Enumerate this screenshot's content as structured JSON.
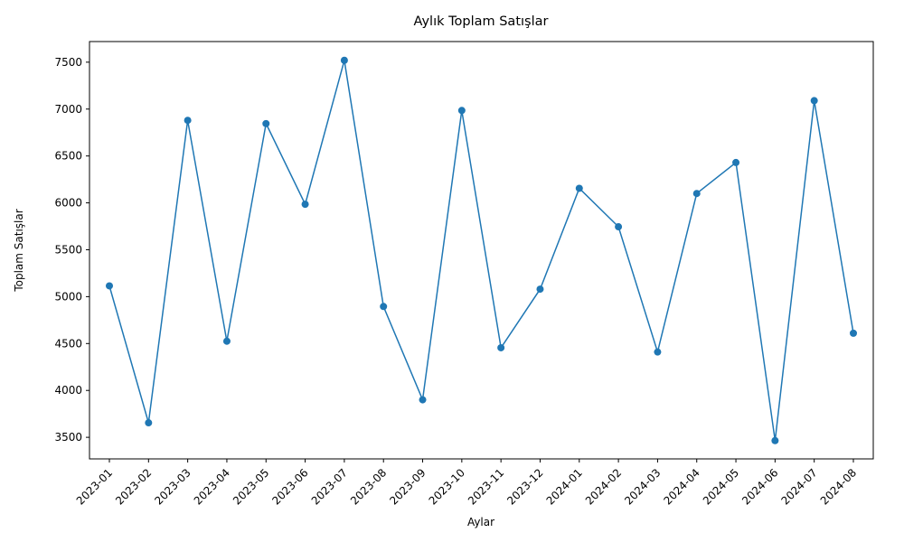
{
  "chart_data": {
    "type": "line",
    "title": "Aylık Toplam Satışlar",
    "xlabel": "Aylar",
    "ylabel": "Toplam Satışlar",
    "categories": [
      "2023-01",
      "2023-02",
      "2023-03",
      "2023-04",
      "2023-05",
      "2023-06",
      "2023-07",
      "2023-08",
      "2023-09",
      "2023-10",
      "2023-11",
      "2023-12",
      "2024-01",
      "2024-02",
      "2024-03",
      "2024-04",
      "2024-05",
      "2024-06",
      "2024-07",
      "2024-08"
    ],
    "series": [
      {
        "values": [
          5115,
          3655,
          6880,
          4525,
          6845,
          5985,
          7520,
          4895,
          3900,
          6985,
          4455,
          5080,
          6155,
          5745,
          4410,
          6100,
          6430,
          3465,
          7090,
          4610
        ],
        "color": "#1f77b4",
        "marker": "circle"
      }
    ],
    "ylim": [
      3270,
      7720
    ],
    "yticks": [
      3500,
      4000,
      4500,
      5000,
      5500,
      6000,
      6500,
      7000,
      7500
    ],
    "grid": false,
    "legend": "none"
  }
}
